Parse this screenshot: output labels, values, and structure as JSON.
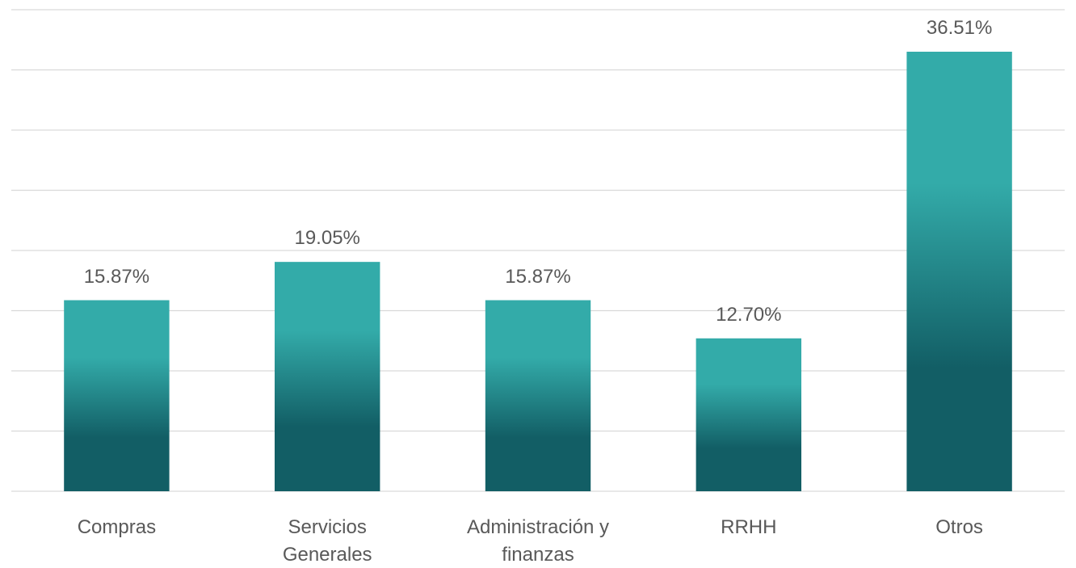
{
  "chart_data": {
    "type": "bar",
    "categories": [
      "Compras",
      "Servicios Generales",
      "Administración y finanzas",
      "RRHH",
      "Otros"
    ],
    "values": [
      15.87,
      19.05,
      15.87,
      12.7,
      36.51
    ],
    "value_labels": [
      "15.87%",
      "19.05%",
      "15.87%",
      "12.70%",
      "36.51%"
    ],
    "color": [
      "#33aba9",
      "#125e65"
    ],
    "ylim": [
      0,
      40
    ],
    "yticks": [
      0,
      5,
      10,
      15,
      20,
      25,
      30,
      35,
      40
    ],
    "grid": true
  }
}
